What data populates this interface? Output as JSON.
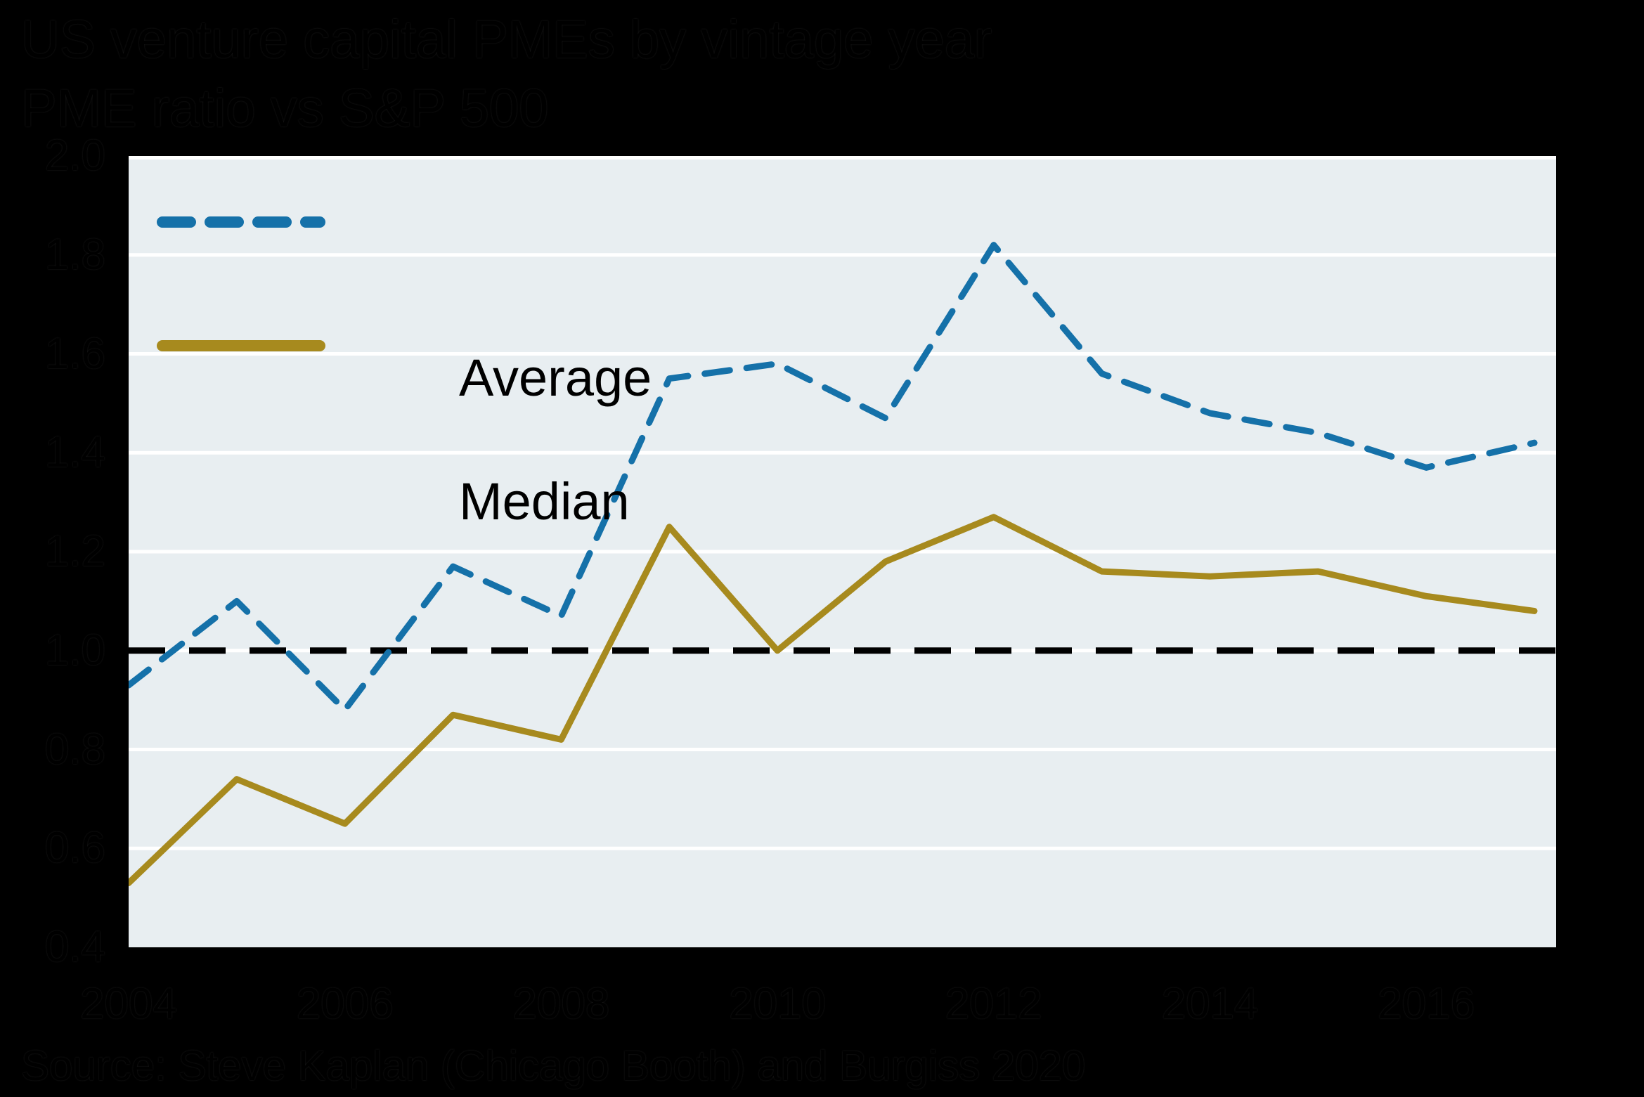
{
  "header": {
    "title": "US venture capital PMEs by vintage year",
    "subtitle": "PME ratio vs S&P 500"
  },
  "footer": {
    "source": "Source: Steve Kaplan (Chicago Booth) and Burgiss 2020"
  },
  "colors": {
    "page_background": "#000000",
    "plot_background": "#E8EEF1",
    "gridline": "#FFFFFF",
    "reference_line": "#000000",
    "average_line": "#1571A9",
    "median_line": "#A78A1E",
    "text": "#000000"
  },
  "chart_data": {
    "type": "line",
    "title": "US venture capital PMEs by vintage year",
    "subtitle": "PME ratio vs S&P 500",
    "xlabel": "vintage year",
    "ylabel": "PME ratio vs S&P 500",
    "x": [
      2004,
      2005,
      2006,
      2007,
      2008,
      2009,
      2010,
      2011,
      2012,
      2013,
      2014,
      2015,
      2016,
      2017
    ],
    "x_tick_labels": [
      "2004",
      "2006",
      "2008",
      "2010",
      "2012",
      "2014",
      "2016"
    ],
    "y_tick_labels": [
      "2.0",
      "1.8",
      "1.6",
      "1.4",
      "1.2",
      "1.0",
      "0.8",
      "0.6",
      "0.4"
    ],
    "ylim": [
      0.4,
      2.0
    ],
    "gridline_values": [
      2.0,
      1.8,
      1.6,
      1.4,
      1.2,
      1.0,
      0.8,
      0.6
    ],
    "reference_line_value": 1.0,
    "grid": "horizontal-white",
    "legend_position": "top-left",
    "series": [
      {
        "name": "Average",
        "style": "dashed",
        "color": "#1571A9",
        "values": [
          0.93,
          1.1,
          0.88,
          1.17,
          1.07,
          1.55,
          1.58,
          1.47,
          1.82,
          1.56,
          1.48,
          1.44,
          1.37,
          1.42
        ]
      },
      {
        "name": "Median",
        "style": "solid",
        "color": "#A78A1E",
        "values": [
          0.53,
          0.74,
          0.65,
          0.87,
          0.82,
          1.25,
          1.0,
          1.18,
          1.27,
          1.16,
          1.15,
          1.16,
          1.11,
          1.08
        ]
      }
    ]
  }
}
